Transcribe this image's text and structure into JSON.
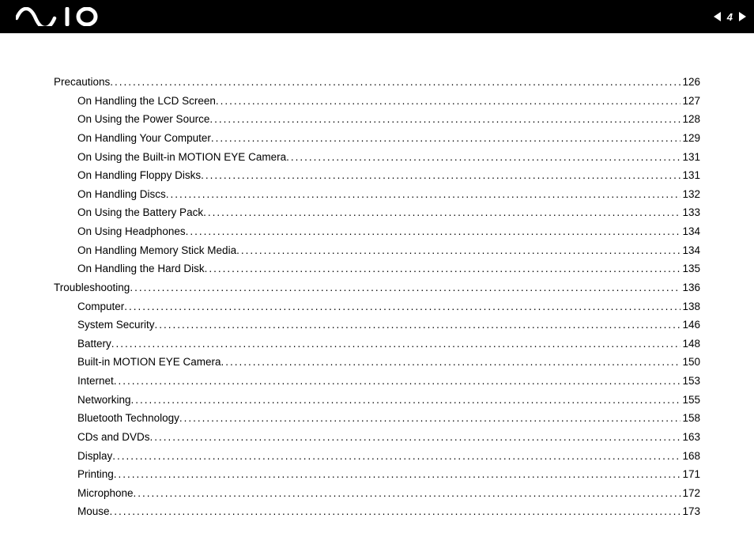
{
  "header": {
    "page_number": "4"
  },
  "toc": [
    {
      "label": "Precautions",
      "page": "126",
      "level": 0
    },
    {
      "label": "On Handling the LCD Screen",
      "page": "127",
      "level": 1
    },
    {
      "label": "On Using the Power Source",
      "page": "128",
      "level": 1
    },
    {
      "label": "On Handling Your Computer",
      "page": "129",
      "level": 1
    },
    {
      "label": "On Using the Built-in MOTION EYE Camera",
      "page": "131",
      "level": 1
    },
    {
      "label": "On Handling Floppy Disks",
      "page": "131",
      "level": 1
    },
    {
      "label": "On Handling Discs",
      "page": "132",
      "level": 1
    },
    {
      "label": "On Using the Battery Pack",
      "page": "133",
      "level": 1
    },
    {
      "label": "On Using Headphones",
      "page": "134",
      "level": 1
    },
    {
      "label": "On Handling Memory Stick Media",
      "page": "134",
      "level": 1
    },
    {
      "label": "On Handling the Hard Disk",
      "page": "135",
      "level": 1
    },
    {
      "label": "Troubleshooting",
      "page": "136",
      "level": 0
    },
    {
      "label": "Computer",
      "page": "138",
      "level": 1
    },
    {
      "label": "System Security",
      "page": "146",
      "level": 1
    },
    {
      "label": "Battery",
      "page": "148",
      "level": 1
    },
    {
      "label": "Built-in MOTION EYE Camera",
      "page": "150",
      "level": 1
    },
    {
      "label": "Internet",
      "page": "153",
      "level": 1
    },
    {
      "label": "Networking",
      "page": "155",
      "level": 1
    },
    {
      "label": "Bluetooth Technology",
      "page": "158",
      "level": 1
    },
    {
      "label": "CDs and DVDs",
      "page": "163",
      "level": 1
    },
    {
      "label": "Display",
      "page": "168",
      "level": 1
    },
    {
      "label": "Printing",
      "page": "171",
      "level": 1
    },
    {
      "label": "Microphone",
      "page": "172",
      "level": 1
    },
    {
      "label": "Mouse",
      "page": "173",
      "level": 1
    }
  ]
}
